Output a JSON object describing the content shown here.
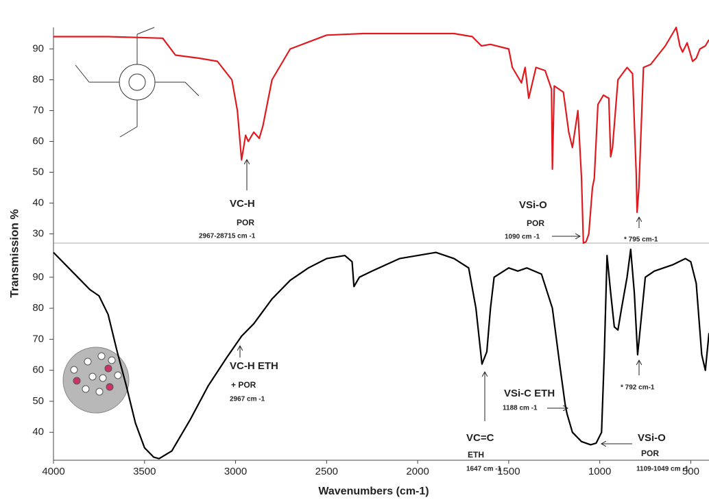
{
  "chart_data": [
    {
      "type": "line",
      "color": "#e0191e",
      "xlim": [
        4000,
        400
      ],
      "ylim": [
        27,
        97
      ],
      "yticks": [
        30,
        40,
        50,
        60,
        70,
        80,
        90
      ],
      "x": [
        4000,
        3700,
        3400,
        3330,
        3200,
        3100,
        3020,
        2990,
        2967,
        2945,
        2930,
        2900,
        2870,
        2850,
        2800,
        2700,
        2500,
        2300,
        2000,
        1800,
        1700,
        1650,
        1600,
        1500,
        1480,
        1430,
        1410,
        1390,
        1350,
        1300,
        1265,
        1260,
        1250,
        1200,
        1170,
        1150,
        1120,
        1100,
        1090,
        1075,
        1060,
        1040,
        1030,
        1010,
        980,
        950,
        940,
        930,
        900,
        850,
        820,
        800,
        795,
        785,
        760,
        720,
        680,
        640,
        600,
        580,
        560,
        545,
        520,
        490,
        470,
        450,
        420,
        400
      ],
      "values": [
        94,
        94,
        93.5,
        88,
        87,
        86,
        80,
        70,
        54,
        62,
        60,
        63,
        61,
        65,
        80,
        90,
        94.5,
        95,
        95,
        95,
        94,
        91,
        91.5,
        90,
        84,
        79,
        84,
        74,
        84,
        83,
        77,
        51,
        78,
        76,
        63,
        58,
        70,
        48,
        27,
        27.5,
        30,
        45,
        48,
        72,
        75,
        74,
        55,
        58,
        80,
        84,
        82,
        50,
        37,
        45,
        84,
        85,
        88,
        91,
        95,
        97,
        91,
        89,
        92,
        86,
        87,
        90,
        91,
        93
      ],
      "annotations": [
        "VC-H",
        "POR",
        "2967-28715 cm -1",
        "VSi-O",
        "POR",
        "1090 cm -1",
        "* 795 cm-1"
      ]
    },
    {
      "type": "line",
      "color": "#000000",
      "xlim": [
        4000,
        400
      ],
      "ylim": [
        31,
        101
      ],
      "yticks": [
        40,
        50,
        60,
        70,
        80,
        90
      ],
      "xticks": [
        4000,
        3500,
        3000,
        2500,
        2000,
        1500,
        1000,
        500
      ],
      "x_label": "Wavenumbers (cm-1)",
      "y_label": "Transmission %",
      "x": [
        4000,
        3900,
        3800,
        3750,
        3700,
        3650,
        3600,
        3550,
        3500,
        3450,
        3420,
        3350,
        3250,
        3150,
        3050,
        2967,
        2900,
        2800,
        2700,
        2600,
        2500,
        2400,
        2360,
        2350,
        2320,
        2250,
        2100,
        2000,
        1900,
        1800,
        1720,
        1680,
        1647,
        1620,
        1600,
        1580,
        1500,
        1450,
        1400,
        1320,
        1260,
        1220,
        1190,
        1180,
        1150,
        1100,
        1050,
        1020,
        990,
        975,
        960,
        940,
        920,
        900,
        880,
        850,
        830,
        810,
        792,
        775,
        750,
        700,
        600,
        530,
        500,
        470,
        440,
        420,
        400
      ],
      "values": [
        98,
        92,
        86,
        84,
        78,
        66,
        55,
        43,
        35,
        32,
        31.5,
        34,
        44,
        55,
        64,
        71,
        75,
        83,
        89,
        93,
        96,
        97,
        95,
        87,
        90,
        92,
        96,
        97,
        98,
        96,
        93,
        80,
        62,
        66,
        80,
        90,
        93,
        92,
        93,
        91,
        80,
        62,
        49,
        46,
        40,
        37,
        36,
        36.5,
        40,
        65,
        97,
        85,
        74,
        73,
        80,
        90,
        99,
        85,
        65,
        75,
        90,
        92,
        94,
        96,
        95,
        88,
        65,
        60,
        72
      ],
      "annotations": [
        "VC-H ETH",
        "+ POR",
        "2967 cm -1",
        "VC=C",
        "ETH",
        "1647 cm -1",
        "VSi-C ETH",
        "1188 cm -1",
        "* 792 cm-1",
        "VSi-O",
        "POR",
        "1109-1049 cm -1"
      ]
    }
  ]
}
